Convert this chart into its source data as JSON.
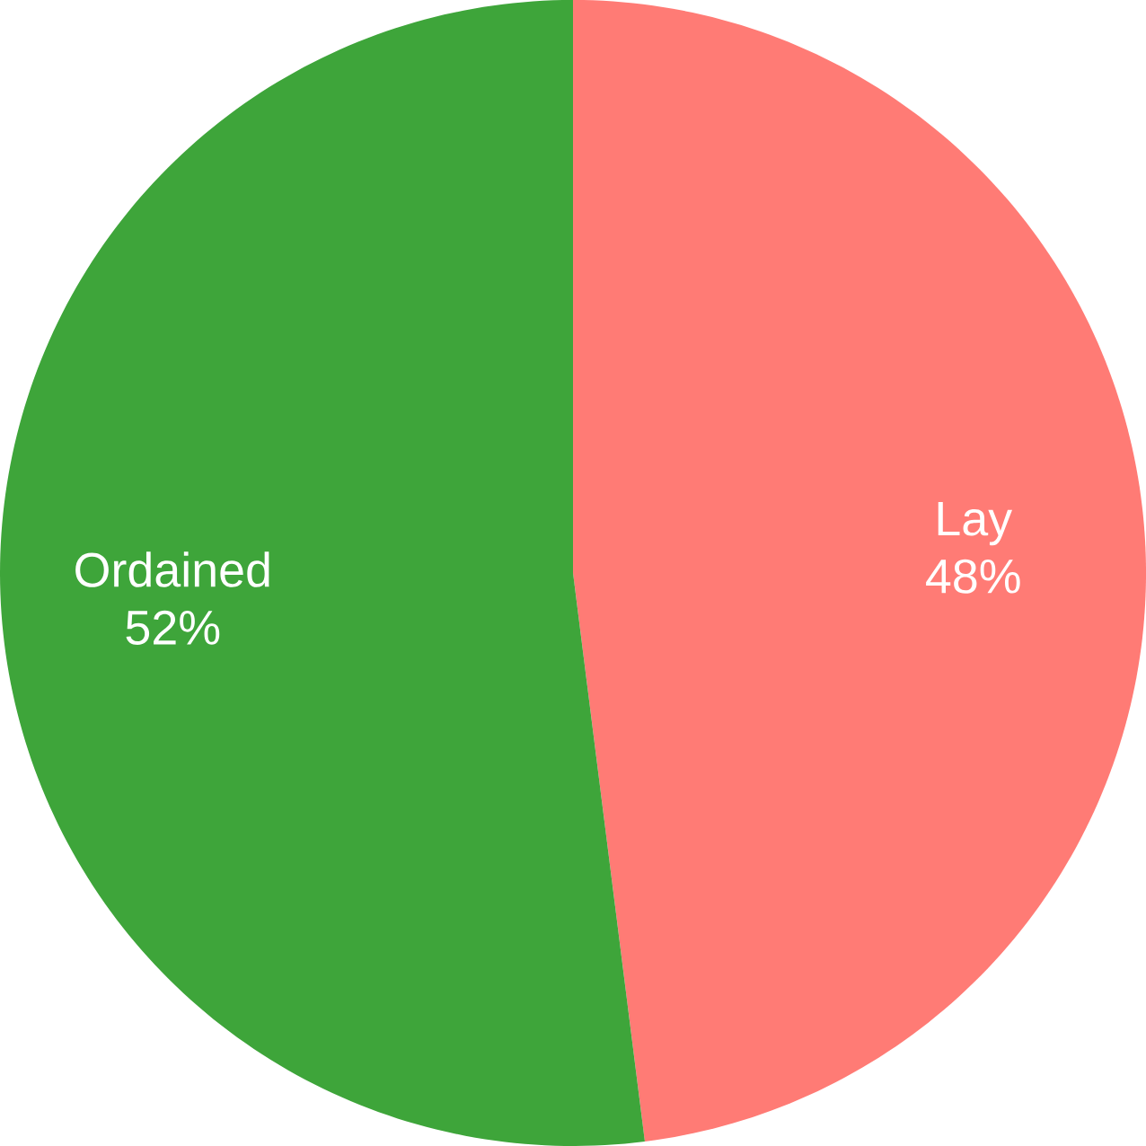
{
  "chart_data": {
    "type": "pie",
    "categories": [
      "Lay",
      "Ordained"
    ],
    "values": [
      48,
      52
    ],
    "colors": [
      "#ff7b75",
      "#3ea53a"
    ],
    "value_labels": [
      "48%",
      "52%"
    ]
  }
}
